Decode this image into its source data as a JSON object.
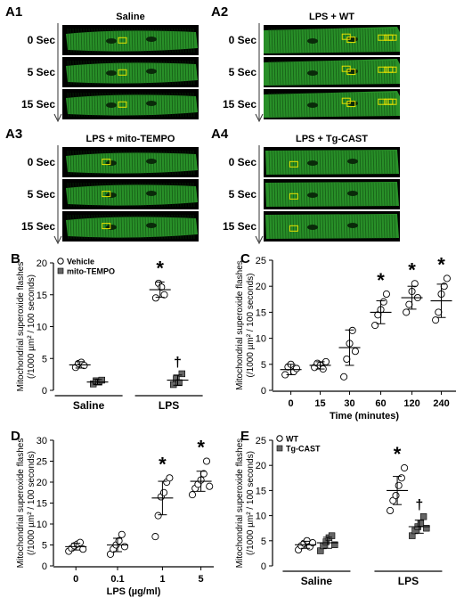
{
  "image_panels": [
    {
      "label": "A1",
      "title": "Saline",
      "times": [
        "0 Sec",
        "5 Sec",
        "15 Sec"
      ]
    },
    {
      "label": "A2",
      "title": "LPS + WT",
      "times": [
        "0 Sec",
        "5 Sec",
        "15 Sec"
      ]
    },
    {
      "label": "A3",
      "title": "LPS + mito-TEMPO",
      "times": [
        "0 Sec",
        "5 Sec",
        "15 Sec"
      ]
    },
    {
      "label": "A4",
      "title": "LPS + Tg-CAST",
      "times": [
        "0 Sec",
        "5 Sec",
        "15 Sec"
      ]
    }
  ],
  "colors": {
    "cell_green": "#2fa82f",
    "cell_bg": "#000000",
    "roi": "#e8e000",
    "filled_marker": "#666666"
  },
  "chart_data": [
    {
      "panel": "B",
      "type": "scatter",
      "ylabel": "Mitochondrial superoxide flashes\n(/1000 µm² / 100 seconds)",
      "xlabel": "",
      "categories": [
        "Saline",
        "LPS"
      ],
      "ylim": [
        0,
        20
      ],
      "yticks": [
        0,
        5,
        10,
        15,
        20
      ],
      "legend": [
        "Vehicle",
        "mito-TEMPO"
      ],
      "series": [
        {
          "name": "Vehicle",
          "marker": "open-circle",
          "groups": [
            {
              "category": "Saline",
              "points": [
                3.6,
                4.2,
                4.4,
                3.9
              ],
              "mean": 4.0,
              "sd": 0.5
            },
            {
              "category": "LPS",
              "points": [
                14.5,
                16.8,
                16.2,
                15.0
              ],
              "mean": 15.8,
              "sd": 1.2
            }
          ]
        },
        {
          "name": "mito-TEMPO",
          "marker": "filled-square",
          "groups": [
            {
              "category": "Saline",
              "points": [
                1.0,
                1.5,
                1.3,
                1.6
              ],
              "mean": 1.3,
              "sd": 0.4
            },
            {
              "category": "LPS",
              "points": [
                0.9,
                1.8,
                1.2,
                2.6
              ],
              "mean": 1.6,
              "sd": 0.8
            }
          ]
        }
      ],
      "annotations": [
        {
          "category": "LPS",
          "series": "Vehicle",
          "text": "*"
        },
        {
          "category": "LPS",
          "series": "mito-TEMPO",
          "text": "†"
        }
      ]
    },
    {
      "panel": "C",
      "type": "scatter",
      "ylabel": "Mitochondrial superoxide flashes\n(/1000 µm² / 100 seconds)",
      "xlabel": "Time (minutes)",
      "categories": [
        "0",
        "15",
        "30",
        "60",
        "120",
        "240"
      ],
      "ylim": [
        0,
        25
      ],
      "yticks": [
        0,
        5,
        10,
        15,
        20,
        25
      ],
      "series": [
        {
          "name": "",
          "marker": "open-circle",
          "groups": [
            {
              "category": "0",
              "points": [
                3.0,
                4.5,
                5.0,
                3.6,
                4.2
              ],
              "mean": 4.0,
              "sd": 1.0
            },
            {
              "category": "15",
              "points": [
                4.4,
                5.2,
                4.8,
                4.1,
                5.5
              ],
              "mean": 4.8,
              "sd": 0.7
            },
            {
              "category": "30",
              "points": [
                2.6,
                6.0,
                9.0,
                11.5,
                7.5
              ],
              "mean": 8.2,
              "sd": 3.4
            },
            {
              "category": "60",
              "points": [
                12.5,
                14.5,
                15.5,
                17.0,
                18.5
              ],
              "mean": 15.0,
              "sd": 2.2
            },
            {
              "category": "120",
              "points": [
                15.0,
                16.5,
                19.0,
                20.5,
                17.8
              ],
              "mean": 17.8,
              "sd": 2.2
            },
            {
              "category": "240",
              "points": [
                13.5,
                15.0,
                18.5,
                20.0,
                21.5
              ],
              "mean": 17.2,
              "sd": 3.2
            }
          ]
        }
      ],
      "annotations": [
        {
          "category": "60",
          "text": "*"
        },
        {
          "category": "120",
          "text": "*"
        },
        {
          "category": "240",
          "text": "*"
        }
      ]
    },
    {
      "panel": "D",
      "type": "scatter",
      "ylabel": "Mitochondrial superoxide flashes\n(/1000 µm² / 100 seconds)",
      "xlabel": "LPS (µg/ml)",
      "categories": [
        "0",
        "0.1",
        "1",
        "5"
      ],
      "ylim": [
        0,
        30
      ],
      "yticks": [
        0,
        5,
        10,
        15,
        20,
        25,
        30
      ],
      "series": [
        {
          "name": "",
          "marker": "open-circle",
          "groups": [
            {
              "category": "0",
              "points": [
                3.5,
                4.2,
                4.8,
                5.2,
                5.6,
                4.0
              ],
              "mean": 4.6,
              "sd": 0.8
            },
            {
              "category": "0.1",
              "points": [
                2.8,
                4.0,
                5.0,
                6.0,
                7.5,
                4.6
              ],
              "mean": 5.0,
              "sd": 1.6
            },
            {
              "category": "1",
              "points": [
                7.0,
                12.0,
                16.5,
                17.5,
                20.0,
                21.0
              ],
              "mean": 16.2,
              "sd": 4.0
            },
            {
              "category": "5",
              "points": [
                17.0,
                18.5,
                19.5,
                20.5,
                22.0,
                25.0,
                19.0
              ],
              "mean": 20.2,
              "sd": 2.4
            }
          ]
        }
      ],
      "annotations": [
        {
          "category": "1",
          "text": "*"
        },
        {
          "category": "5",
          "text": "*"
        }
      ]
    },
    {
      "panel": "E",
      "type": "scatter",
      "ylabel": "Mitochondrial superoxide flashes\n(/1000 µm² / 100 seconds)",
      "xlabel": "",
      "categories": [
        "Saline",
        "LPS"
      ],
      "ylim": [
        0,
        25
      ],
      "yticks": [
        0,
        5,
        10,
        15,
        20,
        25
      ],
      "legend": [
        "WT",
        "Tg-CAST"
      ],
      "series": [
        {
          "name": "WT",
          "marker": "open-circle",
          "groups": [
            {
              "category": "Saline",
              "points": [
                3.2,
                4.0,
                4.5,
                5.0,
                3.8,
                4.6
              ],
              "mean": 4.2,
              "sd": 0.7
            },
            {
              "category": "LPS",
              "points": [
                11.0,
                13.0,
                14.0,
                16.0,
                17.5,
                19.5
              ],
              "mean": 15.0,
              "sd": 2.8
            }
          ]
        },
        {
          "name": "Tg-CAST",
          "marker": "filled-square",
          "groups": [
            {
              "category": "Saline",
              "points": [
                3.0,
                4.0,
                4.8,
                5.6,
                6.0,
                4.2
              ],
              "mean": 4.6,
              "sd": 1.1
            },
            {
              "category": "LPS",
              "points": [
                6.0,
                7.0,
                7.8,
                8.5,
                9.8,
                7.5
              ],
              "mean": 7.8,
              "sd": 1.3
            }
          ]
        }
      ],
      "annotations": [
        {
          "category": "LPS",
          "series": "WT",
          "text": "*"
        },
        {
          "category": "LPS",
          "series": "Tg-CAST",
          "text": "†"
        }
      ]
    }
  ]
}
